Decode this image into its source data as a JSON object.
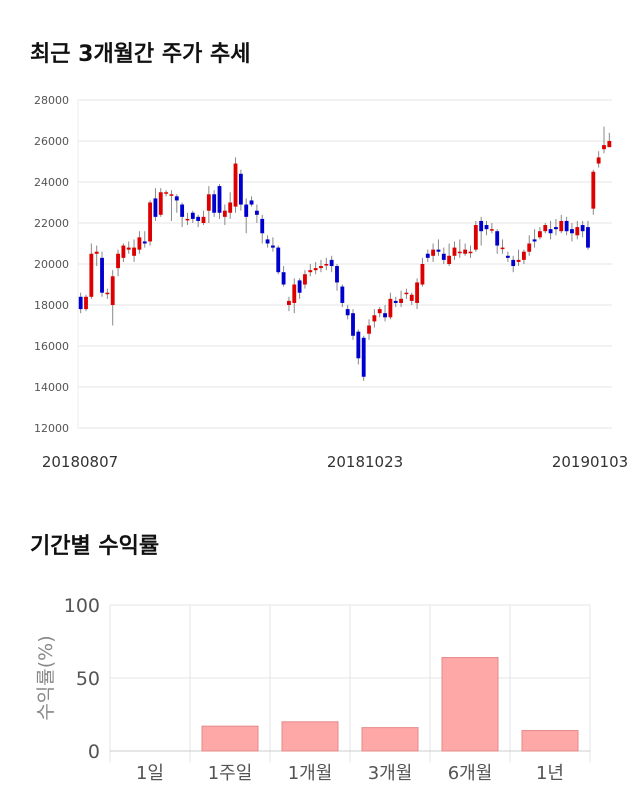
{
  "page": {
    "candle_title": "최근 3개월간 주가 추세",
    "returns_title": "기간별 수익률"
  },
  "chart_data": [
    {
      "type": "candlestick",
      "title": "최근 3개월간 주가 추세",
      "y_ticks": [
        "28000",
        "26000",
        "24000",
        "22000",
        "20000",
        "18000",
        "16000",
        "14000",
        "12000"
      ],
      "x_labels": [
        "20180807",
        "20181023",
        "20190103"
      ],
      "ylim": [
        12000,
        28000
      ],
      "grid": true,
      "up_color": "#dd0000",
      "down_color": "#0000cc",
      "candles": [
        [
          18400,
          17800,
          18600,
          17600
        ],
        [
          17800,
          18400,
          18500,
          17700
        ],
        [
          18400,
          20500,
          21000,
          18300
        ],
        [
          20500,
          20600,
          20900,
          19900
        ],
        [
          20300,
          18600,
          20600,
          18400
        ],
        [
          18600,
          18600,
          18800,
          18300
        ],
        [
          18000,
          19400,
          19700,
          17000
        ],
        [
          19800,
          20500,
          20700,
          19400
        ],
        [
          20300,
          20900,
          21000,
          20100
        ],
        [
          20700,
          20800,
          21100,
          20500
        ],
        [
          20400,
          20800,
          21200,
          20100
        ],
        [
          20700,
          21300,
          21600,
          20500
        ],
        [
          21100,
          21000,
          21600,
          20800
        ],
        [
          21100,
          23000,
          23100,
          20900
        ],
        [
          23200,
          22300,
          23700,
          22100
        ],
        [
          22400,
          23500,
          23700,
          22300
        ],
        [
          23500,
          23500,
          23600,
          23300
        ],
        [
          23400,
          23400,
          23600,
          22100
        ],
        [
          23300,
          23100,
          23400,
          22500
        ],
        [
          22900,
          22300,
          23000,
          21800
        ],
        [
          22200,
          22200,
          22500,
          21900
        ],
        [
          22500,
          22200,
          22600,
          22000
        ],
        [
          22300,
          22100,
          22400,
          21800
        ],
        [
          22000,
          22300,
          22600,
          21900
        ],
        [
          22600,
          23400,
          23800,
          22000
        ],
        [
          23400,
          22500,
          23600,
          22300
        ],
        [
          23800,
          22500,
          23900,
          22200
        ],
        [
          22300,
          22600,
          22900,
          21900
        ],
        [
          22500,
          23000,
          23500,
          22200
        ],
        [
          22800,
          24900,
          25200,
          22500
        ],
        [
          24400,
          22900,
          24600,
          22600
        ],
        [
          22900,
          22300,
          23200,
          21500
        ],
        [
          23100,
          22900,
          23300,
          22800
        ],
        [
          22600,
          22400,
          22900,
          22000
        ],
        [
          22200,
          21500,
          22400,
          21000
        ],
        [
          21200,
          21000,
          21400,
          20800
        ],
        [
          20900,
          20800,
          21300,
          20600
        ],
        [
          20800,
          19600,
          20900,
          19500
        ],
        [
          19600,
          19000,
          19900,
          18900
        ],
        [
          18000,
          18200,
          18400,
          17700
        ],
        [
          18100,
          19000,
          19300,
          17600
        ],
        [
          19200,
          18600,
          19300,
          18300
        ],
        [
          19000,
          19500,
          19700,
          18800
        ],
        [
          19600,
          19700,
          20000,
          19400
        ],
        [
          19700,
          19800,
          20100,
          19500
        ],
        [
          19800,
          19900,
          20200,
          19600
        ],
        [
          20000,
          20000,
          20300,
          19700
        ],
        [
          20200,
          19900,
          20400,
          19600
        ],
        [
          19900,
          19100,
          20000,
          18700
        ],
        [
          18900,
          18100,
          19000,
          17900
        ],
        [
          17800,
          17500,
          18000,
          17300
        ],
        [
          17600,
          16500,
          17800,
          16300
        ],
        [
          16700,
          15400,
          16800,
          15100
        ],
        [
          16400,
          14500,
          16500,
          14300
        ],
        [
          16600,
          17000,
          17300,
          16300
        ],
        [
          17200,
          17500,
          17800,
          16900
        ],
        [
          17600,
          17800,
          17900,
          17400
        ],
        [
          17600,
          17400,
          18000,
          17200
        ],
        [
          17400,
          18300,
          18600,
          17300
        ],
        [
          18200,
          18100,
          18400,
          17900
        ],
        [
          18100,
          18300,
          18700,
          17900
        ],
        [
          18600,
          18600,
          18800,
          18300
        ],
        [
          18200,
          18500,
          18600,
          18000
        ],
        [
          18100,
          19100,
          19300,
          17800
        ],
        [
          19000,
          20000,
          20300,
          18900
        ],
        [
          20500,
          20300,
          20700,
          20100
        ],
        [
          20400,
          20700,
          21000,
          20100
        ],
        [
          20700,
          20600,
          21200,
          20400
        ],
        [
          20500,
          20200,
          20800,
          20000
        ],
        [
          20000,
          20400,
          21000,
          19900
        ],
        [
          20400,
          20800,
          21100,
          20200
        ],
        [
          20600,
          20600,
          21200,
          20300
        ],
        [
          20500,
          20700,
          21000,
          20400
        ],
        [
          20600,
          20600,
          20900,
          20300
        ],
        [
          20700,
          21900,
          22100,
          20600
        ],
        [
          22100,
          21600,
          22300,
          20900
        ],
        [
          21900,
          21700,
          22100,
          21400
        ],
        [
          21700,
          21700,
          22000,
          21500
        ],
        [
          21600,
          20900,
          21700,
          20500
        ],
        [
          20800,
          20800,
          21200,
          20500
        ],
        [
          20400,
          20300,
          20600,
          20100
        ],
        [
          20200,
          19900,
          20400,
          19600
        ],
        [
          20100,
          20200,
          20700,
          19900
        ],
        [
          20200,
          20600,
          20700,
          20000
        ],
        [
          20600,
          21000,
          21400,
          20400
        ],
        [
          21200,
          21100,
          21700,
          20800
        ],
        [
          21300,
          21600,
          21800,
          21200
        ],
        [
          21600,
          21900,
          22000,
          21500
        ],
        [
          21700,
          21500,
          22100,
          21200
        ],
        [
          21800,
          21700,
          22200,
          21400
        ],
        [
          21600,
          22100,
          22400,
          21500
        ],
        [
          22100,
          21600,
          22300,
          21400
        ],
        [
          21700,
          21500,
          22000,
          21100
        ],
        [
          21400,
          21800,
          22100,
          21200
        ],
        [
          21900,
          21600,
          22100,
          21300
        ],
        [
          21800,
          20800,
          22100,
          20700
        ],
        [
          22700,
          24500,
          24600,
          22400
        ],
        [
          24900,
          25200,
          25500,
          24700
        ],
        [
          25600,
          25800,
          26700,
          25400
        ],
        [
          25700,
          26000,
          26400,
          25700
        ]
      ]
    },
    {
      "type": "bar",
      "title": "기간별 수익률",
      "categories": [
        "1일",
        "1주일",
        "1개월",
        "3개월",
        "6개월",
        "1년"
      ],
      "values": [
        0,
        17,
        20,
        16,
        64,
        14
      ],
      "ylabel": "수익률(%)",
      "ylim": [
        0,
        100
      ],
      "y_ticks": [
        "100",
        "50",
        "0"
      ],
      "grid": true,
      "bar_color": "#ffa8a8",
      "bar_stroke": "#e58888"
    }
  ]
}
